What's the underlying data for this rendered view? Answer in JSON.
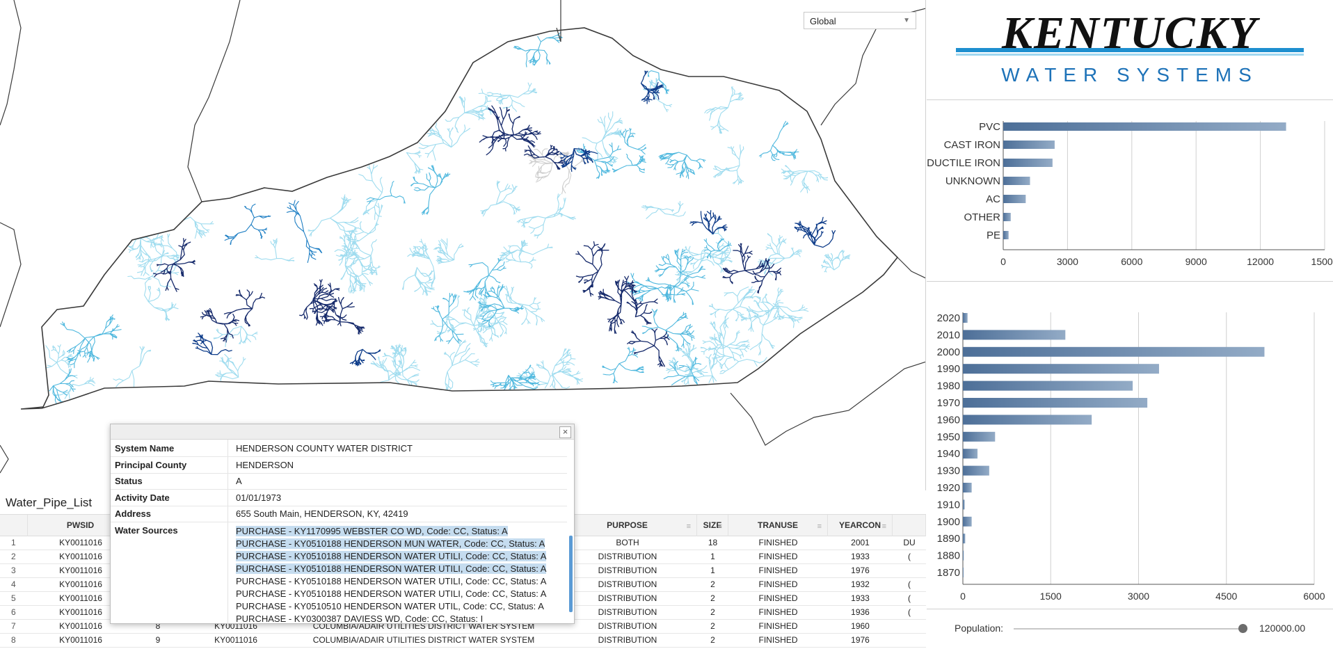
{
  "map": {
    "scope_select": "Global",
    "colors": {
      "light": "#9fdcef",
      "mid": "#4fb8de",
      "blue": "#1f7fc4",
      "dark": "#0f3d8a",
      "navy": "#162a6b",
      "gray": "#cfcfcf",
      "border": "#3a3a3a"
    }
  },
  "logo": {
    "title": "KENTUCKY",
    "subtitle": "WATER SYSTEMS"
  },
  "material_chart": {
    "chart_data": {
      "type": "bar",
      "orientation": "horizontal",
      "categories": [
        "PVC",
        "CAST IRON",
        "DUCTILE IRON",
        "UNKNOWN",
        "AC",
        "OTHER",
        "PE"
      ],
      "values": [
        13200,
        2400,
        2300,
        1250,
        1050,
        350,
        250
      ],
      "xlim": [
        0,
        15000
      ],
      "xticks": [
        "0",
        "3000",
        "6000",
        "9000",
        "12000",
        "15000"
      ],
      "grid": true,
      "color": "#5a7ea8"
    }
  },
  "decade_chart": {
    "chart_data": {
      "type": "bar",
      "orientation": "horizontal",
      "categories": [
        "2020",
        "2010",
        "2000",
        "1990",
        "1980",
        "1970",
        "1960",
        "1950",
        "1940",
        "1930",
        "1920",
        "1910",
        "1900",
        "1890",
        "1880",
        "1870"
      ],
      "values": [
        80,
        1750,
        5150,
        3350,
        2900,
        3150,
        2200,
        550,
        250,
        450,
        150,
        30,
        150,
        40,
        15,
        10
      ],
      "xlim": [
        0,
        6000
      ],
      "xticks": [
        "0",
        "1500",
        "3000",
        "4500",
        "6000"
      ],
      "grid": true,
      "color": "#5a7ea8"
    }
  },
  "slider": {
    "label": "Population:",
    "value": "120000.00",
    "fraction": 0.98
  },
  "table": {
    "title": "Water_Pipe_List",
    "columns": [
      {
        "label": "",
        "filter": ""
      },
      {
        "label": "PWSID",
        "filter": ""
      },
      {
        "label": "",
        "filter": ""
      },
      {
        "label": "",
        "filter": ""
      },
      {
        "label": "",
        "filter": ""
      },
      {
        "label": "PURPOSE",
        "filter": "≡"
      },
      {
        "label": "SIZE",
        "filter": "≡"
      },
      {
        "label": "TRANUSE",
        "filter": "≡"
      },
      {
        "label": "YEARCON",
        "filter": "≡"
      },
      {
        "label": "",
        "filter": ""
      }
    ],
    "rows": [
      [
        "1",
        "KY0011016",
        "",
        "",
        "",
        "BOTH",
        "18",
        "FINISHED",
        "2001",
        "DU"
      ],
      [
        "2",
        "KY0011016",
        "",
        "",
        "",
        "DISTRIBUTION",
        "1",
        "FINISHED",
        "1933",
        "("
      ],
      [
        "3",
        "KY0011016",
        "",
        "",
        "",
        "DISTRIBUTION",
        "1",
        "FINISHED",
        "1976",
        ""
      ],
      [
        "4",
        "KY0011016",
        "",
        "",
        "",
        "DISTRIBUTION",
        "2",
        "FINISHED",
        "1932",
        "("
      ],
      [
        "5",
        "KY0011016",
        "",
        "",
        "",
        "DISTRIBUTION",
        "2",
        "FINISHED",
        "1933",
        "("
      ],
      [
        "6",
        "KY0011016",
        "",
        "",
        "",
        "DISTRIBUTION",
        "2",
        "FINISHED",
        "1936",
        "("
      ],
      [
        "7",
        "KY0011016",
        "8",
        "KY0011016",
        "COLUMBIA/ADAIR UTILITIES DISTRICT WATER SYSTEM",
        "DISTRIBUTION",
        "2",
        "FINISHED",
        "1960",
        ""
      ],
      [
        "8",
        "KY0011016",
        "9",
        "KY0011016",
        "COLUMBIA/ADAIR UTILITIES DISTRICT WATER SYSTEM",
        "DISTRIBUTION",
        "2",
        "FINISHED",
        "1976",
        ""
      ]
    ]
  },
  "popup": {
    "close": "×",
    "fields": [
      {
        "key": "System Name",
        "value": "HENDERSON COUNTY WATER DISTRICT"
      },
      {
        "key": "Principal County",
        "value": "HENDERSON"
      },
      {
        "key": "Status",
        "value": "A"
      },
      {
        "key": "Activity Date",
        "value": "01/01/1973"
      },
      {
        "key": "Address",
        "value": "655 South Main, HENDERSON, KY, 42419"
      }
    ],
    "sources_key": "Water Sources",
    "sources": [
      "PURCHASE - KY1170995 WEBSTER CO WD, Code: CC, Status: A",
      "PURCHASE - KY0510188 HENDERSON MUN WATER, Code: CC, Status: A",
      "PURCHASE - KY0510188 HENDERSON WATER UTILI, Code: CC, Status: A",
      "PURCHASE - KY0510188 HENDERSON WATER UTILI, Code: CC, Status: A",
      "PURCHASE - KY0510188 HENDERSON WATER UTILI, Code: CC, Status: A",
      "PURCHASE - KY0510188 HENDERSON WATER UTILI, Code: CC, Status: A",
      "PURCHASE - KY0510510 HENDERSON WATER UTIL, Code: CC, Status: A",
      "PURCHASE - KY0300387 DAVIESS WD, Code: CC, Status: I"
    ],
    "highlighted_lines": 4
  }
}
